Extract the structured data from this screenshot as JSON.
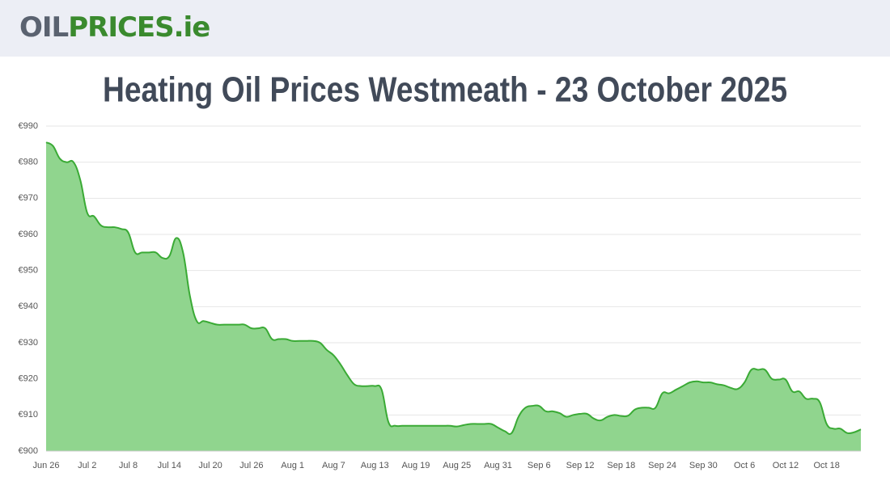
{
  "logo": {
    "part1": "OIL",
    "part2": "PRICES.ie"
  },
  "chart_data": {
    "type": "area",
    "title": "Heating Oil Prices Westmeath - 23 October 2025",
    "categories": [
      "Jun 26",
      null,
      null,
      null,
      null,
      null,
      "Jul 2",
      null,
      null,
      null,
      null,
      null,
      "Jul 8",
      null,
      null,
      null,
      null,
      null,
      "Jul 14",
      null,
      null,
      null,
      null,
      null,
      "Jul 20",
      null,
      null,
      null,
      null,
      null,
      "Jul 26",
      null,
      null,
      null,
      null,
      null,
      "Aug 1",
      null,
      null,
      null,
      null,
      null,
      "Aug 7",
      null,
      null,
      null,
      null,
      null,
      "Aug 13",
      null,
      null,
      null,
      null,
      null,
      "Aug 19",
      null,
      null,
      null,
      null,
      null,
      "Aug 25",
      null,
      null,
      null,
      null,
      null,
      "Aug 31",
      null,
      null,
      null,
      null,
      null,
      "Sep 6",
      null,
      null,
      null,
      null,
      null,
      "Sep 12",
      null,
      null,
      null,
      null,
      null,
      "Sep 18",
      null,
      null,
      null,
      null,
      null,
      "Sep 24",
      null,
      null,
      null,
      null,
      null,
      "Sep 30",
      null,
      null,
      null,
      null,
      null,
      "Oct 6",
      null,
      null,
      null,
      null,
      null,
      "Oct 12",
      null,
      null,
      null,
      null,
      null,
      "Oct 18",
      null,
      null,
      null,
      null,
      null
    ],
    "values": [
      985.5,
      984.5,
      981,
      980,
      980,
      975,
      966,
      965,
      962.5,
      962,
      962,
      961.5,
      960.5,
      955,
      955,
      955,
      955,
      953.5,
      954,
      959,
      955,
      943,
      936,
      936,
      935.5,
      935,
      935,
      935,
      935,
      935,
      934,
      934,
      934,
      931,
      931,
      931,
      930.5,
      930.5,
      930.5,
      930.5,
      930,
      928,
      926.5,
      924,
      921,
      918.5,
      918,
      918,
      918,
      917,
      908,
      907,
      907,
      907,
      907,
      907,
      907,
      907,
      907,
      907,
      906.8,
      907.2,
      907.5,
      907.5,
      907.5,
      907.5,
      906.5,
      905.5,
      905,
      909.5,
      912,
      912.5,
      912.5,
      911,
      911,
      910.5,
      909.5,
      910,
      910.3,
      910.3,
      909,
      908.5,
      909.5,
      910,
      909.7,
      909.8,
      911.5,
      912,
      912,
      912,
      916,
      916,
      917,
      918,
      919,
      919.3,
      919,
      919,
      918.5,
      918.2,
      917.5,
      917.2,
      919,
      922.5,
      922.5,
      922.5,
      920,
      919.8,
      919.8,
      916.5,
      916.5,
      914.5,
      914.5,
      913.5,
      907.5,
      906.2,
      906.2,
      905,
      905.2,
      906
    ],
    "color": "#3aaa35",
    "fill": "#90d58e",
    "ylim": [
      900,
      990
    ],
    "yticks": [
      {
        "value": 900,
        "label": "€900"
      },
      {
        "value": 910,
        "label": "€910"
      },
      {
        "value": 920,
        "label": "€920"
      },
      {
        "value": 930,
        "label": "€930"
      },
      {
        "value": 940,
        "label": "€940"
      },
      {
        "value": 950,
        "label": "€950"
      },
      {
        "value": 960,
        "label": "€960"
      },
      {
        "value": 970,
        "label": "€970"
      },
      {
        "value": 980,
        "label": "€980"
      },
      {
        "value": 990,
        "label": "€990"
      }
    ],
    "grid": true
  }
}
